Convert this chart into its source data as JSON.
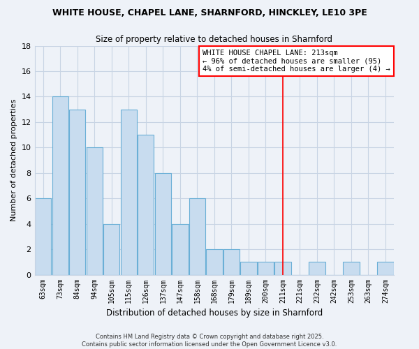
{
  "title1": "WHITE HOUSE, CHAPEL LANE, SHARNFORD, HINCKLEY, LE10 3PE",
  "title2": "Size of property relative to detached houses in Sharnford",
  "xlabel": "Distribution of detached houses by size in Sharnford",
  "ylabel": "Number of detached properties",
  "bar_labels": [
    "63sqm",
    "73sqm",
    "84sqm",
    "94sqm",
    "105sqm",
    "115sqm",
    "126sqm",
    "137sqm",
    "147sqm",
    "158sqm",
    "168sqm",
    "179sqm",
    "189sqm",
    "200sqm",
    "211sqm",
    "221sqm",
    "232sqm",
    "242sqm",
    "253sqm",
    "263sqm",
    "274sqm"
  ],
  "bar_values": [
    6,
    14,
    13,
    10,
    4,
    13,
    11,
    8,
    4,
    6,
    2,
    2,
    1,
    1,
    1,
    0,
    1,
    0,
    1,
    0,
    1
  ],
  "bar_color": "#c8dcef",
  "bar_edge_color": "#6aafd6",
  "vline_x": 14,
  "vline_color": "red",
  "annotation_box_text": "WHITE HOUSE CHAPEL LANE: 213sqm\n← 96% of detached houses are smaller (95)\n4% of semi-detached houses are larger (4) →",
  "ylim": [
    0,
    18
  ],
  "background_color": "#eef2f8",
  "plot_bg_color": "#eef2f8",
  "grid_color": "#c8d4e4",
  "footer1": "Contains HM Land Registry data © Crown copyright and database right 2025.",
  "footer2": "Contains public sector information licensed under the Open Government Licence v3.0."
}
